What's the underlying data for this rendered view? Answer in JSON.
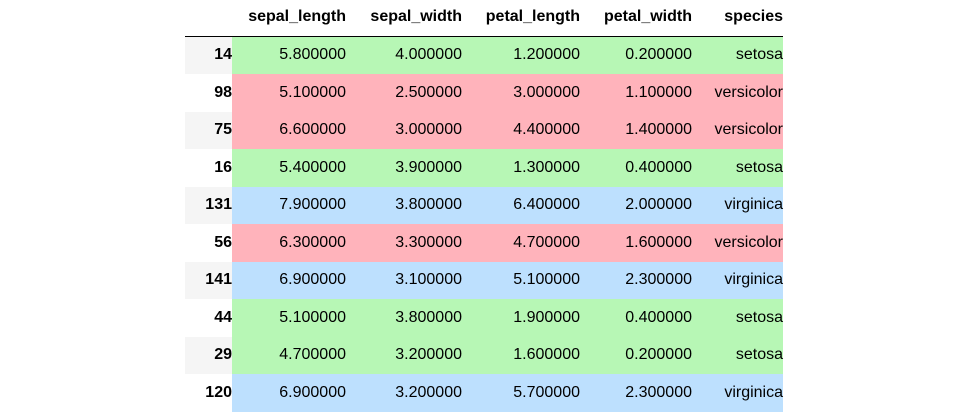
{
  "columns": [
    "sepal_length",
    "sepal_width",
    "petal_length",
    "petal_width",
    "species"
  ],
  "species_colors": {
    "setosa": "#b7f7b5",
    "versicolor": "#ffb3bb",
    "virginica": "#bde0fe"
  },
  "rows": [
    {
      "index": "14",
      "sepal_length": "5.800000",
      "sepal_width": "4.000000",
      "petal_length": "1.200000",
      "petal_width": "0.200000",
      "species": "setosa"
    },
    {
      "index": "98",
      "sepal_length": "5.100000",
      "sepal_width": "2.500000",
      "petal_length": "3.000000",
      "petal_width": "1.100000",
      "species": "versicolor"
    },
    {
      "index": "75",
      "sepal_length": "6.600000",
      "sepal_width": "3.000000",
      "petal_length": "4.400000",
      "petal_width": "1.400000",
      "species": "versicolor"
    },
    {
      "index": "16",
      "sepal_length": "5.400000",
      "sepal_width": "3.900000",
      "petal_length": "1.300000",
      "petal_width": "0.400000",
      "species": "setosa"
    },
    {
      "index": "131",
      "sepal_length": "7.900000",
      "sepal_width": "3.800000",
      "petal_length": "6.400000",
      "petal_width": "2.000000",
      "species": "virginica"
    },
    {
      "index": "56",
      "sepal_length": "6.300000",
      "sepal_width": "3.300000",
      "petal_length": "4.700000",
      "petal_width": "1.600000",
      "species": "versicolor"
    },
    {
      "index": "141",
      "sepal_length": "6.900000",
      "sepal_width": "3.100000",
      "petal_length": "5.100000",
      "petal_width": "2.300000",
      "species": "virginica"
    },
    {
      "index": "44",
      "sepal_length": "5.100000",
      "sepal_width": "3.800000",
      "petal_length": "1.900000",
      "petal_width": "0.400000",
      "species": "setosa"
    },
    {
      "index": "29",
      "sepal_length": "4.700000",
      "sepal_width": "3.200000",
      "petal_length": "1.600000",
      "petal_width": "0.200000",
      "species": "setosa"
    },
    {
      "index": "120",
      "sepal_length": "6.900000",
      "sepal_width": "3.200000",
      "petal_length": "5.700000",
      "petal_width": "2.300000",
      "species": "virginica"
    }
  ]
}
